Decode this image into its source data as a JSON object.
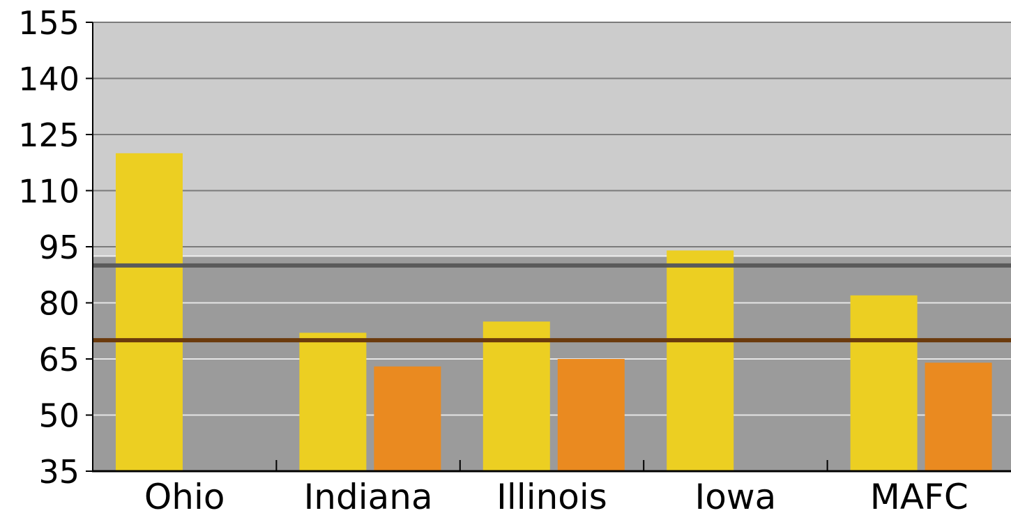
{
  "chart_data": {
    "type": "bar",
    "title": "",
    "xlabel": "",
    "ylabel": "",
    "ylim": [
      35,
      155
    ],
    "yticks": [
      35,
      50,
      65,
      80,
      95,
      110,
      125,
      140,
      155
    ],
    "grid": true,
    "categories": [
      "Ohio",
      "Indiana",
      "Illinois",
      "Iowa",
      "MAFC"
    ],
    "series": [
      {
        "values": [
          120,
          72,
          75,
          94,
          82
        ],
        "color": "#ECCF22"
      },
      {
        "values": [
          null,
          63,
          65,
          null,
          64
        ],
        "color": "#EA8A20"
      }
    ],
    "background_bands": [
      {
        "from": 35,
        "to": 92.5,
        "color": "#9B9B9B"
      },
      {
        "from": 92.5,
        "to": 155,
        "color": "#CCCCCC"
      }
    ],
    "reference_lines": [
      {
        "value": 90,
        "color": "#5A5A5A"
      },
      {
        "value": 70,
        "color": "#6B3A0C"
      }
    ]
  }
}
